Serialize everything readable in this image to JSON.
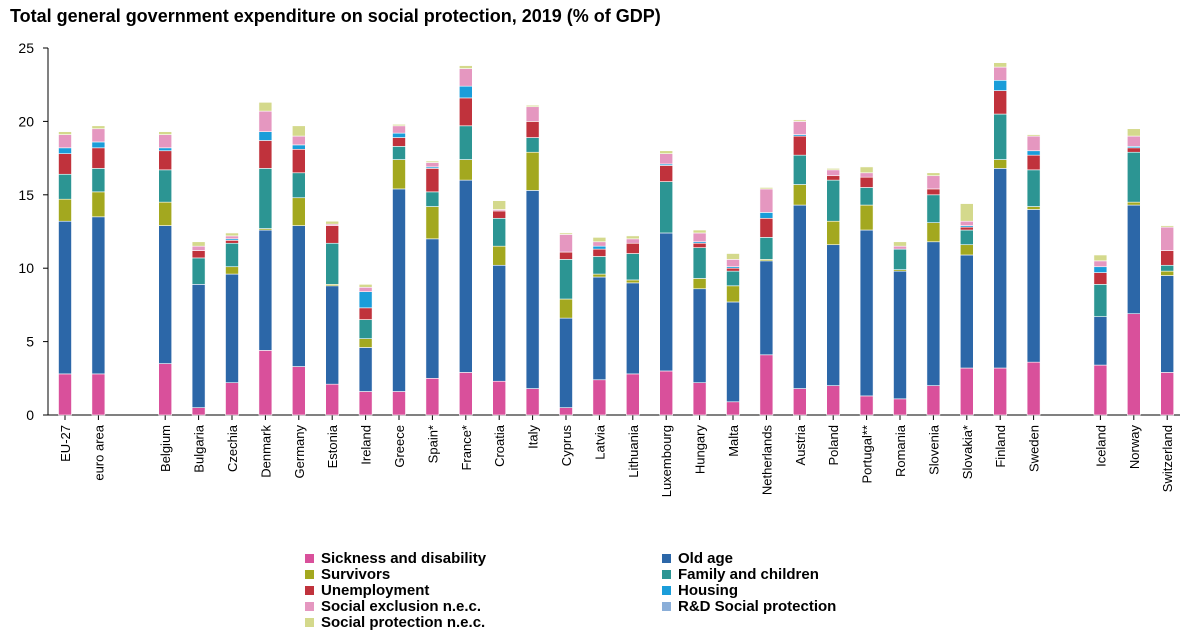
{
  "chart_data": {
    "type": "bar",
    "stacked": true,
    "title": "Total general government expenditure on social protection, 2019 (% of GDP)",
    "xlabel": "",
    "ylabel": "",
    "ylim": [
      0,
      25
    ],
    "yticks": [
      0,
      5,
      10,
      15,
      20,
      25
    ],
    "grid": false,
    "legend_position": "bottom",
    "categories": [
      "EU-27",
      "euro area",
      "Belgium",
      "Bulgaria",
      "Czechia",
      "Denmark",
      "Germany",
      "Estonia",
      "Ireland",
      "Greece",
      "Spain*",
      "France*",
      "Croatia",
      "Italy",
      "Cyprus",
      "Latvia",
      "Lithuania",
      "Luxembourg",
      "Hungary",
      "Malta",
      "Netherlands",
      "Austria",
      "Poland",
      "Portugal**",
      "Romania",
      "Slovenia",
      "Slovakia*",
      "Finland",
      "Sweden",
      "Iceland",
      "Norway",
      "Switzerland"
    ],
    "series": [
      {
        "name": "Sickness and disability",
        "color": "#d9509b",
        "values": [
          2.8,
          2.8,
          3.5,
          0.5,
          2.2,
          4.4,
          3.3,
          2.1,
          1.6,
          1.6,
          2.5,
          2.9,
          2.3,
          1.8,
          0.5,
          2.4,
          2.8,
          3.0,
          2.2,
          0.9,
          4.1,
          1.8,
          2.0,
          1.3,
          1.1,
          2.0,
          3.2,
          3.2,
          3.6,
          3.4,
          6.9,
          2.9
        ]
      },
      {
        "name": "Old age",
        "color": "#2c67a8",
        "values": [
          10.4,
          10.7,
          9.4,
          8.4,
          7.4,
          8.2,
          9.6,
          6.7,
          3.0,
          13.8,
          9.5,
          13.1,
          7.9,
          13.5,
          6.1,
          7.0,
          6.2,
          9.4,
          6.4,
          6.8,
          6.4,
          12.5,
          9.6,
          11.3,
          8.7,
          9.8,
          7.7,
          13.6,
          10.4,
          3.3,
          7.4,
          6.6
        ]
      },
      {
        "name": "Survivors",
        "color": "#a3a81f",
        "values": [
          1.5,
          1.7,
          1.6,
          0.0,
          0.5,
          0.1,
          1.9,
          0.1,
          0.6,
          2.0,
          2.2,
          1.4,
          1.3,
          2.6,
          1.3,
          0.2,
          0.2,
          0.0,
          0.7,
          1.1,
          0.1,
          1.4,
          1.6,
          1.7,
          0.1,
          1.3,
          0.7,
          0.6,
          0.2,
          0.0,
          0.2,
          0.3
        ]
      },
      {
        "name": "Family and children",
        "color": "#2c9593",
        "values": [
          1.7,
          1.6,
          2.2,
          1.8,
          1.6,
          4.1,
          1.7,
          2.8,
          1.3,
          0.9,
          1.0,
          2.3,
          1.9,
          1.0,
          2.7,
          1.2,
          1.8,
          3.5,
          2.1,
          1.0,
          1.5,
          2.0,
          2.8,
          1.2,
          1.4,
          1.9,
          1.0,
          3.1,
          2.5,
          2.2,
          3.4,
          0.4
        ]
      },
      {
        "name": "Unemployment",
        "color": "#c0323c",
        "values": [
          1.4,
          1.4,
          1.3,
          0.5,
          0.2,
          1.9,
          1.6,
          1.2,
          0.8,
          0.6,
          1.6,
          1.9,
          0.5,
          1.1,
          0.5,
          0.5,
          0.7,
          1.1,
          0.3,
          0.2,
          1.3,
          1.3,
          0.3,
          0.7,
          0.0,
          0.4,
          0.2,
          1.6,
          1.0,
          0.8,
          0.3,
          1.0
        ]
      },
      {
        "name": "Housing",
        "color": "#1a9dd9",
        "values": [
          0.4,
          0.4,
          0.2,
          0.0,
          0.1,
          0.6,
          0.3,
          0.0,
          1.1,
          0.3,
          0.1,
          0.8,
          0.0,
          0.0,
          0.0,
          0.2,
          0.0,
          0.1,
          0.1,
          0.1,
          0.4,
          0.1,
          0.0,
          0.0,
          0.0,
          0.0,
          0.1,
          0.7,
          0.3,
          0.4,
          0.1,
          0.0
        ]
      },
      {
        "name": "Social exclusion n.e.c.",
        "color": "#e597c0",
        "values": [
          0.9,
          0.9,
          0.9,
          0.3,
          0.2,
          1.4,
          0.6,
          0.1,
          0.3,
          0.5,
          0.3,
          1.2,
          0.1,
          1.0,
          1.2,
          0.3,
          0.3,
          0.7,
          0.6,
          0.5,
          1.6,
          0.9,
          0.4,
          0.3,
          0.2,
          0.9,
          0.3,
          0.9,
          1.0,
          0.4,
          0.7,
          1.6
        ]
      },
      {
        "name": "R&D Social protection",
        "color": "#8aaed8",
        "values": [
          0.0,
          0.0,
          0.0,
          0.0,
          0.0,
          0.0,
          0.0,
          0.0,
          0.0,
          0.0,
          0.0,
          0.0,
          0.0,
          0.0,
          0.0,
          0.0,
          0.0,
          0.0,
          0.0,
          0.0,
          0.0,
          0.0,
          0.0,
          0.0,
          0.0,
          0.0,
          0.0,
          0.0,
          0.0,
          0.0,
          0.0,
          0.0
        ]
      },
      {
        "name": "Social protection n.e.c.",
        "color": "#d4d98c",
        "values": [
          0.2,
          0.2,
          0.2,
          0.3,
          0.2,
          0.6,
          0.7,
          0.2,
          0.2,
          0.1,
          0.1,
          0.2,
          0.6,
          0.1,
          0.1,
          0.3,
          0.2,
          0.2,
          0.2,
          0.4,
          0.1,
          0.1,
          0.1,
          0.4,
          0.3,
          0.2,
          1.2,
          0.3,
          0.1,
          0.4,
          0.5,
          0.1
        ]
      }
    ]
  }
}
